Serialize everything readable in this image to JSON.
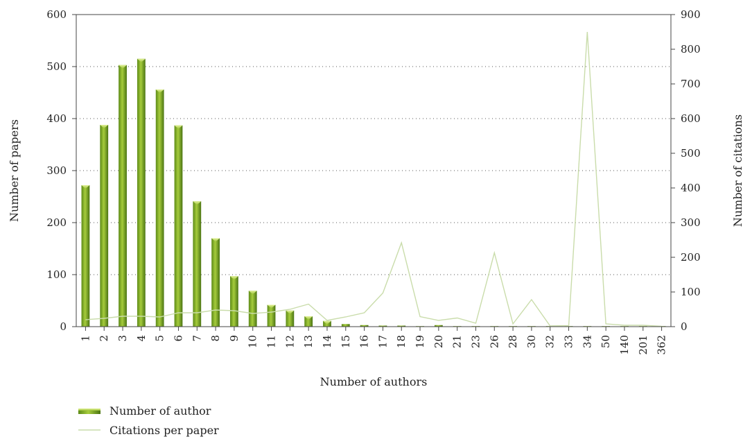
{
  "chart_data": {
    "type": "bar",
    "categories": [
      "1",
      "2",
      "3",
      "4",
      "5",
      "6",
      "7",
      "8",
      "9",
      "10",
      "11",
      "12",
      "13",
      "14",
      "15",
      "16",
      "17",
      "18",
      "19",
      "20",
      "21",
      "23",
      "26",
      "28",
      "30",
      "32",
      "33",
      "34",
      "50",
      "140",
      "201",
      "362"
    ],
    "series": [
      {
        "name": "Number of author",
        "type": "bar",
        "axis": "left",
        "values": [
          272,
          388,
          503,
          515,
          456,
          387,
          241,
          170,
          97,
          69,
          42,
          31,
          20,
          11,
          5,
          3,
          2,
          2,
          1,
          3,
          1,
          1,
          1,
          1,
          1,
          1,
          1,
          1,
          1,
          1,
          1,
          1
        ]
      },
      {
        "name": "Citations per paper",
        "type": "line",
        "axis": "right",
        "values": [
          20,
          24,
          30,
          30,
          28,
          40,
          40,
          48,
          46,
          38,
          42,
          50,
          65,
          18,
          28,
          40,
          97,
          242,
          29,
          18,
          25,
          10,
          213,
          8,
          78,
          2,
          3,
          850,
          8,
          4,
          4,
          1
        ]
      }
    ],
    "xlabel": "Number of authors",
    "ylabel": "Number of papers",
    "y2label": "Number of citations",
    "ylim": [
      0,
      600
    ],
    "y2lim": [
      0,
      900
    ],
    "yticks": [
      0,
      100,
      200,
      300,
      400,
      500,
      600
    ],
    "y2ticks": [
      0,
      100,
      200,
      300,
      400,
      500,
      600,
      700,
      800,
      900
    ],
    "grid": "horizontal-dotted",
    "legend_position": "bottom-left",
    "colors": {
      "bar_light": "#c4e05a",
      "bar_mid": "#8ab52a",
      "bar_dark": "#4f7a14",
      "line": "#c9dcaa"
    }
  }
}
